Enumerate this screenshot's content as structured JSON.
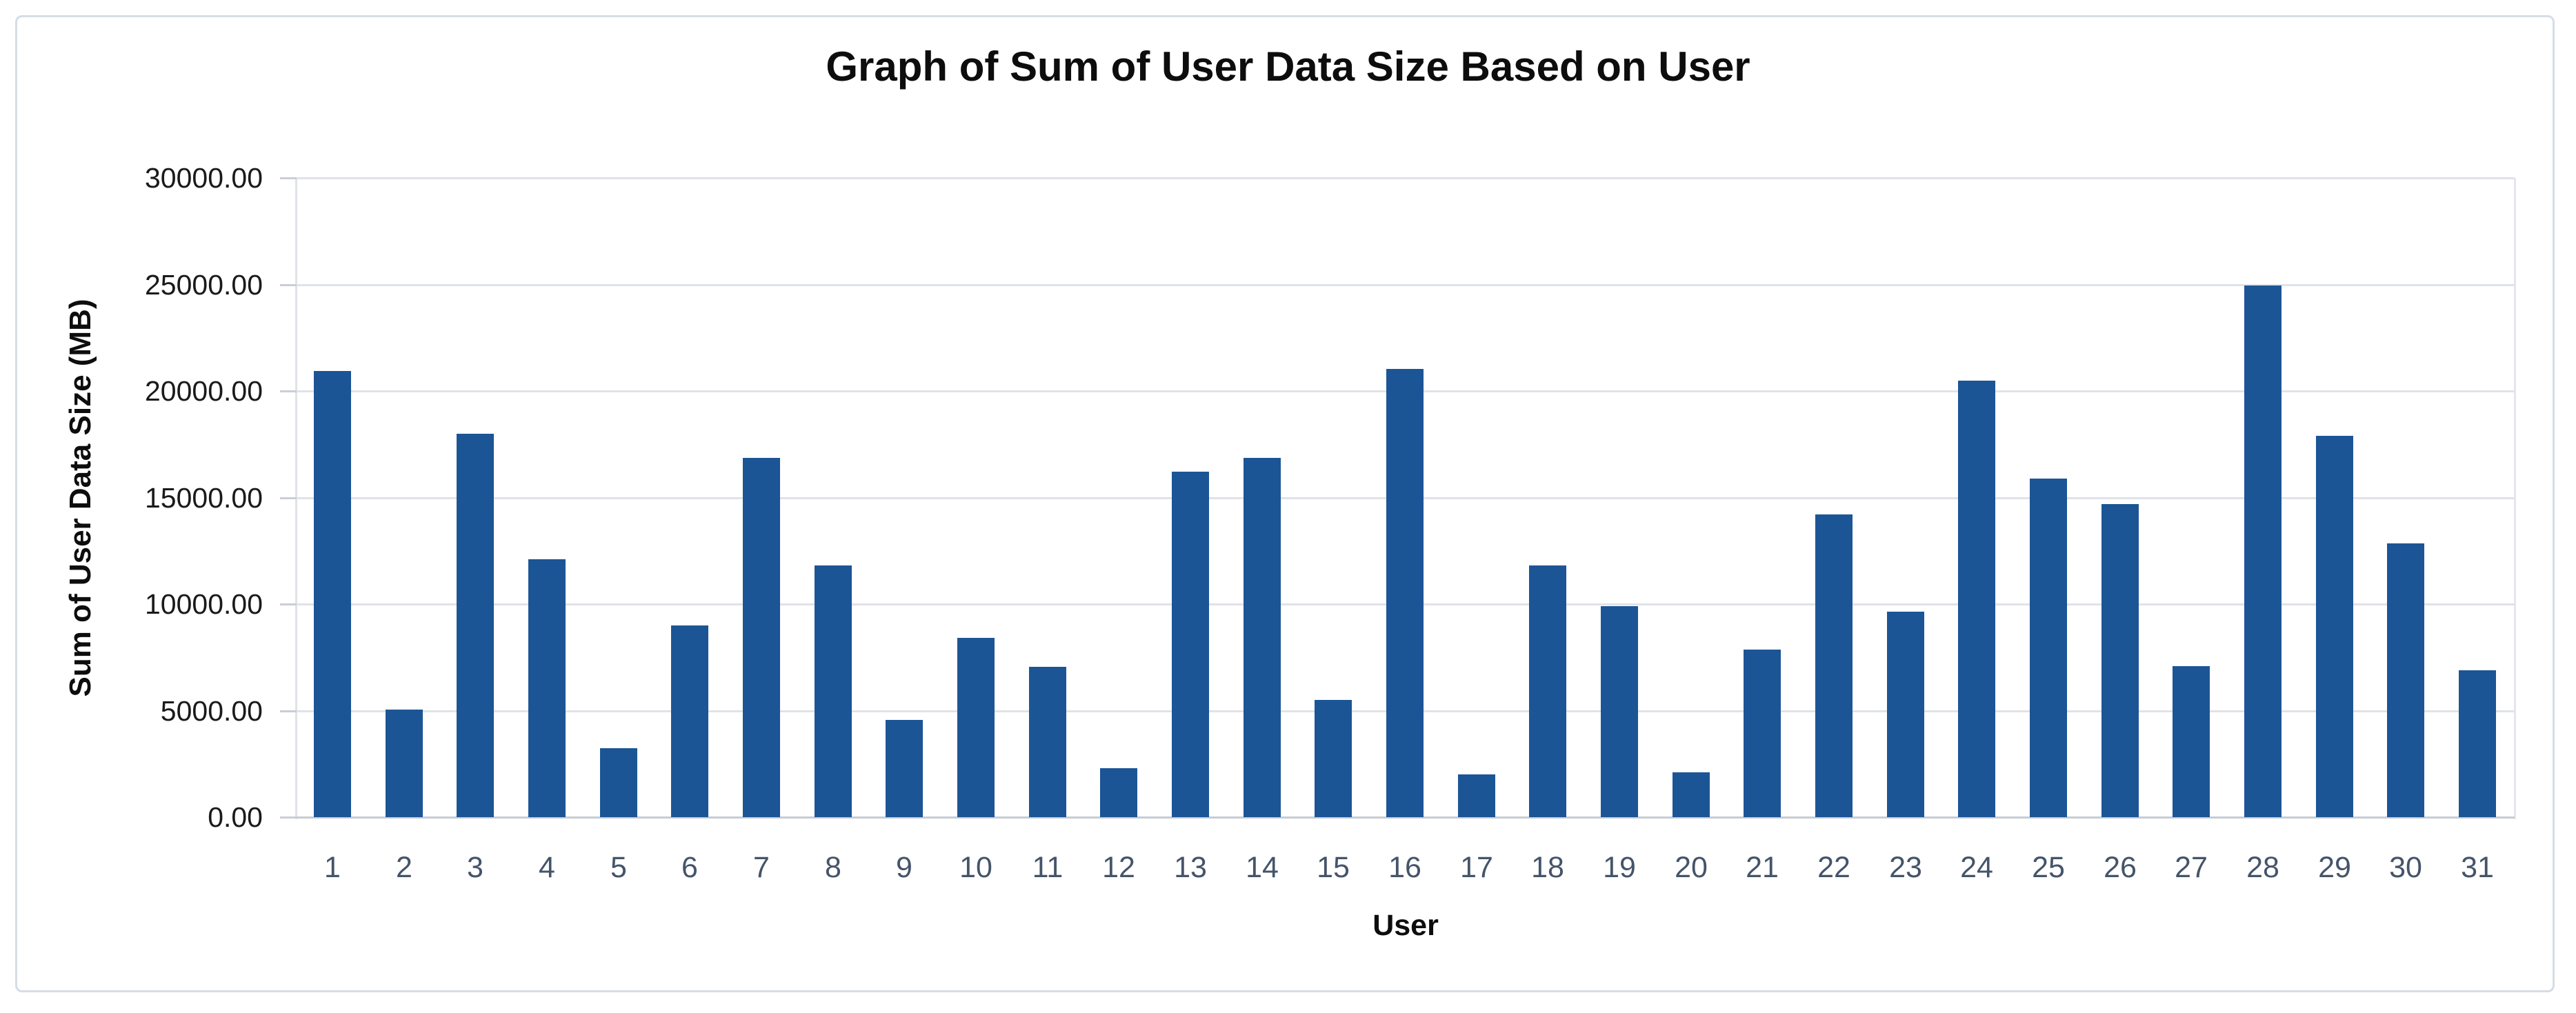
{
  "chart": {
    "title": "Graph of Sum of User Data Size Based on User",
    "y_axis_title": "Sum of User Data Size (MB)",
    "x_axis_title": "User"
  },
  "chart_data": {
    "type": "bar",
    "title": "Graph of Sum of User Data Size Based on User",
    "xlabel": "User",
    "ylabel": "Sum of User Data Size (MB)",
    "categories": [
      "1",
      "2",
      "3",
      "4",
      "5",
      "6",
      "7",
      "8",
      "9",
      "10",
      "11",
      "12",
      "13",
      "14",
      "15",
      "16",
      "17",
      "18",
      "19",
      "20",
      "21",
      "22",
      "23",
      "24",
      "25",
      "26",
      "27",
      "28",
      "29",
      "30",
      "31"
    ],
    "values": [
      20950,
      5050,
      17980,
      12100,
      3250,
      9000,
      16850,
      11800,
      4550,
      8400,
      7050,
      2300,
      16200,
      16850,
      5500,
      21050,
      2000,
      11800,
      9900,
      2100,
      7850,
      14200,
      9650,
      20500,
      15900,
      14700,
      7100,
      24950,
      17900,
      12850,
      6900
    ],
    "ylim": [
      0,
      30000
    ],
    "y_tick_step": 5000,
    "y_tick_format_decimals": 2,
    "grid": true,
    "legend": "none",
    "bar_color": "#1b5596",
    "gridline_color": "#dfe3e8",
    "baseline_color": "#c6ccd4",
    "x_label_color": "#44546a",
    "y_label_color": "#1a1a1a"
  }
}
